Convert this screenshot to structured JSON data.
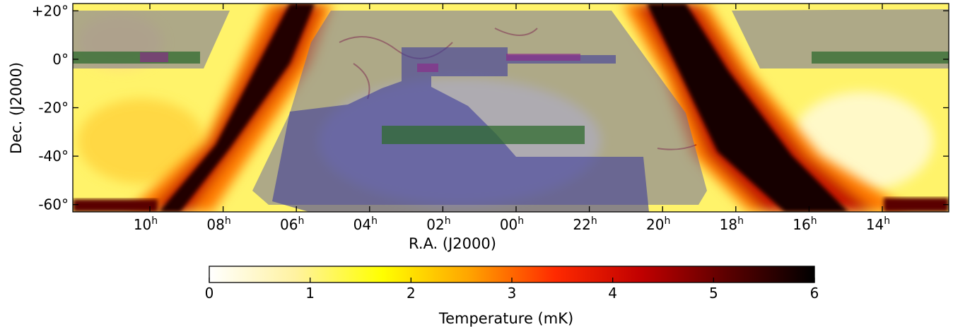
{
  "chart_data": {
    "type": "heatmap",
    "title": "",
    "xlabel": "R.A. (J2000)",
    "ylabel": "Dec. (J2000)",
    "ylim": [
      -63,
      23
    ],
    "x_direction": "right-to-left (R.A. increases to the left)",
    "x_ticks": [
      {
        "label": "10",
        "sup": "h"
      },
      {
        "label": "08",
        "sup": "h"
      },
      {
        "label": "06",
        "sup": "h"
      },
      {
        "label": "04",
        "sup": "h"
      },
      {
        "label": "02",
        "sup": "h"
      },
      {
        "label": "00",
        "sup": "h"
      },
      {
        "label": "22",
        "sup": "h"
      },
      {
        "label": "20",
        "sup": "h"
      },
      {
        "label": "18",
        "sup": "h"
      },
      {
        "label": "16",
        "sup": "h"
      },
      {
        "label": "14",
        "sup": "h"
      }
    ],
    "y_ticks": [
      {
        "value": 20,
        "label": "+20°"
      },
      {
        "value": 0,
        "label": "0°"
      },
      {
        "value": -20,
        "label": "-20°"
      },
      {
        "value": -40,
        "label": "-40°"
      },
      {
        "value": -60,
        "label": "-60°"
      }
    ],
    "colorbar": {
      "label": "Temperature (mK)",
      "range": [
        0,
        6
      ],
      "ticks": [
        "0",
        "1",
        "2",
        "3",
        "4",
        "5",
        "6"
      ],
      "colormap": [
        "#ffffff",
        "#fff2a0",
        "#ffff00",
        "#ffa500",
        "#ff2a00",
        "#c00000",
        "#5a0000",
        "#000000"
      ]
    },
    "overlays": [
      {
        "name": "large survey region",
        "color": "#6b6b9e",
        "style": "translucent grey-purple"
      },
      {
        "name": "deep field region",
        "color": "#3c3c9a",
        "style": "translucent blue"
      },
      {
        "name": "equatorial stripe",
        "color": "#2f6b2f",
        "style": "translucent green"
      },
      {
        "name": "southern stripe",
        "color": "#2f6b2f",
        "style": "translucent green"
      },
      {
        "name": "small fields",
        "color": "#8a2a8a",
        "style": "translucent magenta"
      }
    ],
    "grid": false
  }
}
